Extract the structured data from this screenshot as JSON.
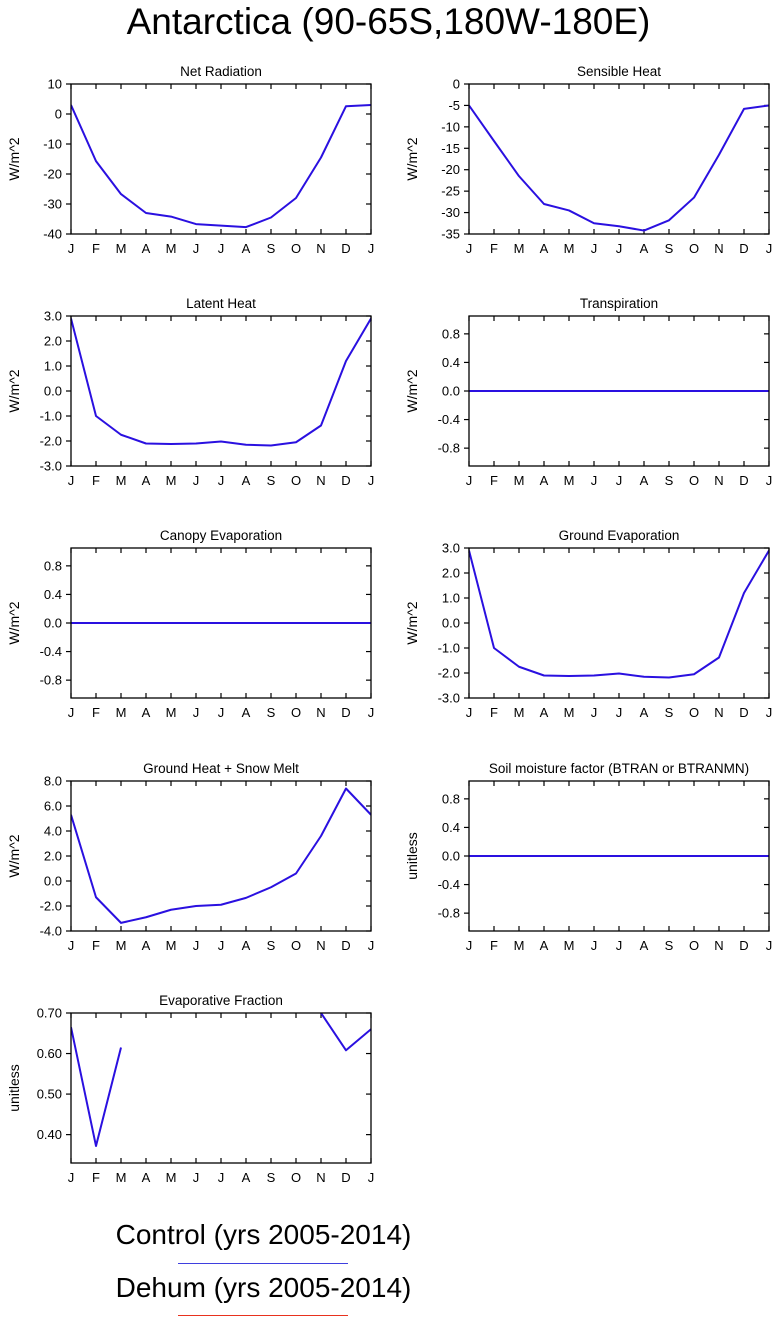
{
  "title": "Antarctica (90-65S,180W-180E)",
  "legend": [
    {
      "label": "Control (yrs 2005-2014)",
      "color": "#3f3fdf"
    },
    {
      "label": "Dehum (yrs 2005-2014)",
      "color": "#e8321e"
    }
  ],
  "chart_data": [
    {
      "type": "line",
      "title": "Net Radiation",
      "ylabel": "W/m^2",
      "categories": [
        "J",
        "F",
        "M",
        "A",
        "M",
        "J",
        "J",
        "A",
        "S",
        "O",
        "N",
        "D",
        "J"
      ],
      "ylim": [
        -40,
        10
      ],
      "yticks": [
        10,
        0,
        -10,
        -20,
        -30,
        -40
      ],
      "ytick_labels": [
        "10",
        "0",
        "-10",
        "-20",
        "-30",
        "-40"
      ],
      "series": [
        {
          "name": "Control (yrs 2005-2014)",
          "color": "#2a10e0",
          "values": [
            3,
            -15.7,
            -26.7,
            -33,
            -34.2,
            -36.7,
            -37.2,
            -37.7,
            -34.5,
            -28,
            -14.5,
            2.6,
            3
          ]
        }
      ]
    },
    {
      "type": "line",
      "title": "Sensible Heat",
      "ylabel": "W/m^2",
      "categories": [
        "J",
        "F",
        "M",
        "A",
        "M",
        "J",
        "J",
        "A",
        "S",
        "O",
        "N",
        "D",
        "J"
      ],
      "ylim": [
        -35,
        0
      ],
      "yticks": [
        0,
        -5,
        -10,
        -15,
        -20,
        -25,
        -30,
        -35
      ],
      "ytick_labels": [
        "0",
        "-5",
        "-10",
        "-15",
        "-20",
        "-25",
        "-30",
        "-35"
      ],
      "series": [
        {
          "name": "Control (yrs 2005-2014)",
          "color": "#2a10e0",
          "values": [
            -5,
            -13.3,
            -21.5,
            -28,
            -29.5,
            -32.5,
            -33.2,
            -34.2,
            -31.8,
            -26.5,
            -16.5,
            -5.8,
            -5
          ]
        }
      ]
    },
    {
      "type": "line",
      "title": "Latent Heat",
      "ylabel": "W/m^2",
      "categories": [
        "J",
        "F",
        "M",
        "A",
        "M",
        "J",
        "J",
        "A",
        "S",
        "O",
        "N",
        "D",
        "J"
      ],
      "ylim": [
        -3,
        3
      ],
      "yticks": [
        3,
        2,
        1,
        0,
        -1,
        -2,
        -3
      ],
      "ytick_labels": [
        "3.0",
        "2.0",
        "1.0",
        "0.0",
        "-1.0",
        "-2.0",
        "-3.0"
      ],
      "series": [
        {
          "name": "Control (yrs 2005-2014)",
          "color": "#2a10e0",
          "values": [
            2.9,
            -1.0,
            -1.75,
            -2.1,
            -2.12,
            -2.1,
            -2.02,
            -2.15,
            -2.18,
            -2.05,
            -1.38,
            1.2,
            2.9
          ]
        }
      ]
    },
    {
      "type": "line",
      "title": "Transpiration",
      "ylabel": "W/m^2",
      "categories": [
        "J",
        "F",
        "M",
        "A",
        "M",
        "J",
        "J",
        "A",
        "S",
        "O",
        "N",
        "D",
        "J"
      ],
      "ylim": [
        -1.05,
        1.05
      ],
      "yticks": [
        0.8,
        0.4,
        0,
        -0.4,
        -0.8
      ],
      "ytick_labels": [
        "0.8",
        "0.4",
        "0.0",
        "-0.4",
        "-0.8"
      ],
      "series": [
        {
          "name": "Control (yrs 2005-2014)",
          "color": "#2a10e0",
          "values": [
            0,
            0,
            0,
            0,
            0,
            0,
            0,
            0,
            0,
            0,
            0,
            0,
            0
          ]
        }
      ]
    },
    {
      "type": "line",
      "title": "Canopy Evaporation",
      "ylabel": "W/m^2",
      "categories": [
        "J",
        "F",
        "M",
        "A",
        "M",
        "J",
        "J",
        "A",
        "S",
        "O",
        "N",
        "D",
        "J"
      ],
      "ylim": [
        -1.05,
        1.05
      ],
      "yticks": [
        0.8,
        0.4,
        0,
        -0.4,
        -0.8
      ],
      "ytick_labels": [
        "0.8",
        "0.4",
        "0.0",
        "-0.4",
        "-0.8"
      ],
      "series": [
        {
          "name": "Control (yrs 2005-2014)",
          "color": "#2a10e0",
          "values": [
            0,
            0,
            0,
            0,
            0,
            0,
            0,
            0,
            0,
            0,
            0,
            0,
            0
          ]
        }
      ]
    },
    {
      "type": "line",
      "title": "Ground Evaporation",
      "ylabel": "W/m^2",
      "categories": [
        "J",
        "F",
        "M",
        "A",
        "M",
        "J",
        "J",
        "A",
        "S",
        "O",
        "N",
        "D",
        "J"
      ],
      "ylim": [
        -3,
        3
      ],
      "yticks": [
        3,
        2,
        1,
        0,
        -1,
        -2,
        -3
      ],
      "ytick_labels": [
        "3.0",
        "2.0",
        "1.0",
        "0.0",
        "-1.0",
        "-2.0",
        "-3.0"
      ],
      "series": [
        {
          "name": "Control (yrs 2005-2014)",
          "color": "#2a10e0",
          "values": [
            2.9,
            -1.0,
            -1.75,
            -2.1,
            -2.12,
            -2.1,
            -2.02,
            -2.15,
            -2.18,
            -2.05,
            -1.38,
            1.2,
            2.9
          ]
        }
      ]
    },
    {
      "type": "line",
      "title": "Ground Heat + Snow Melt",
      "ylabel": "W/m^2",
      "categories": [
        "J",
        "F",
        "M",
        "A",
        "M",
        "J",
        "J",
        "A",
        "S",
        "O",
        "N",
        "D",
        "J"
      ],
      "ylim": [
        -4,
        8
      ],
      "yticks": [
        8,
        6,
        4,
        2,
        0,
        -2,
        -4
      ],
      "ytick_labels": [
        "8.0",
        "6.0",
        "4.0",
        "2.0",
        "0.0",
        "-2.0",
        "-4.0"
      ],
      "series": [
        {
          "name": "Control (yrs 2005-2014)",
          "color": "#2a10e0",
          "values": [
            5.3,
            -1.3,
            -3.35,
            -2.9,
            -2.3,
            -2.0,
            -1.9,
            -1.35,
            -0.5,
            0.6,
            3.6,
            7.4,
            5.3
          ]
        }
      ]
    },
    {
      "type": "line",
      "title": "Soil moisture factor (BTRAN or BTRANMN)",
      "ylabel": "unitless",
      "categories": [
        "J",
        "F",
        "M",
        "A",
        "M",
        "J",
        "J",
        "A",
        "S",
        "O",
        "N",
        "D",
        "J"
      ],
      "ylim": [
        -1.05,
        1.05
      ],
      "yticks": [
        0.8,
        0.4,
        0,
        -0.4,
        -0.8
      ],
      "ytick_labels": [
        "0.8",
        "0.4",
        "0.0",
        "-0.4",
        "-0.8"
      ],
      "series": [
        {
          "name": "Control (yrs 2005-2014)",
          "color": "#2a10e0",
          "values": [
            0,
            0,
            0,
            0,
            0,
            0,
            0,
            0,
            0,
            0,
            0,
            0,
            0
          ]
        }
      ]
    },
    {
      "type": "line",
      "title": "Evaporative Fraction",
      "ylabel": "unitless",
      "categories": [
        "J",
        "F",
        "M",
        "A",
        "M",
        "J",
        "J",
        "A",
        "S",
        "O",
        "N",
        "D",
        "J"
      ],
      "ylim": [
        0.33,
        0.7
      ],
      "yticks": [
        0.7,
        0.6,
        0.5,
        0.4
      ],
      "ytick_labels": [
        "0.70",
        "0.60",
        "0.50",
        "0.40"
      ],
      "series": [
        {
          "name": "Control (yrs 2005-2014)",
          "color": "#2a10e0",
          "values": [
            0.665,
            0.372,
            0.615,
            null,
            null,
            null,
            null,
            null,
            null,
            null,
            0.7,
            0.608,
            0.66
          ]
        }
      ]
    }
  ]
}
